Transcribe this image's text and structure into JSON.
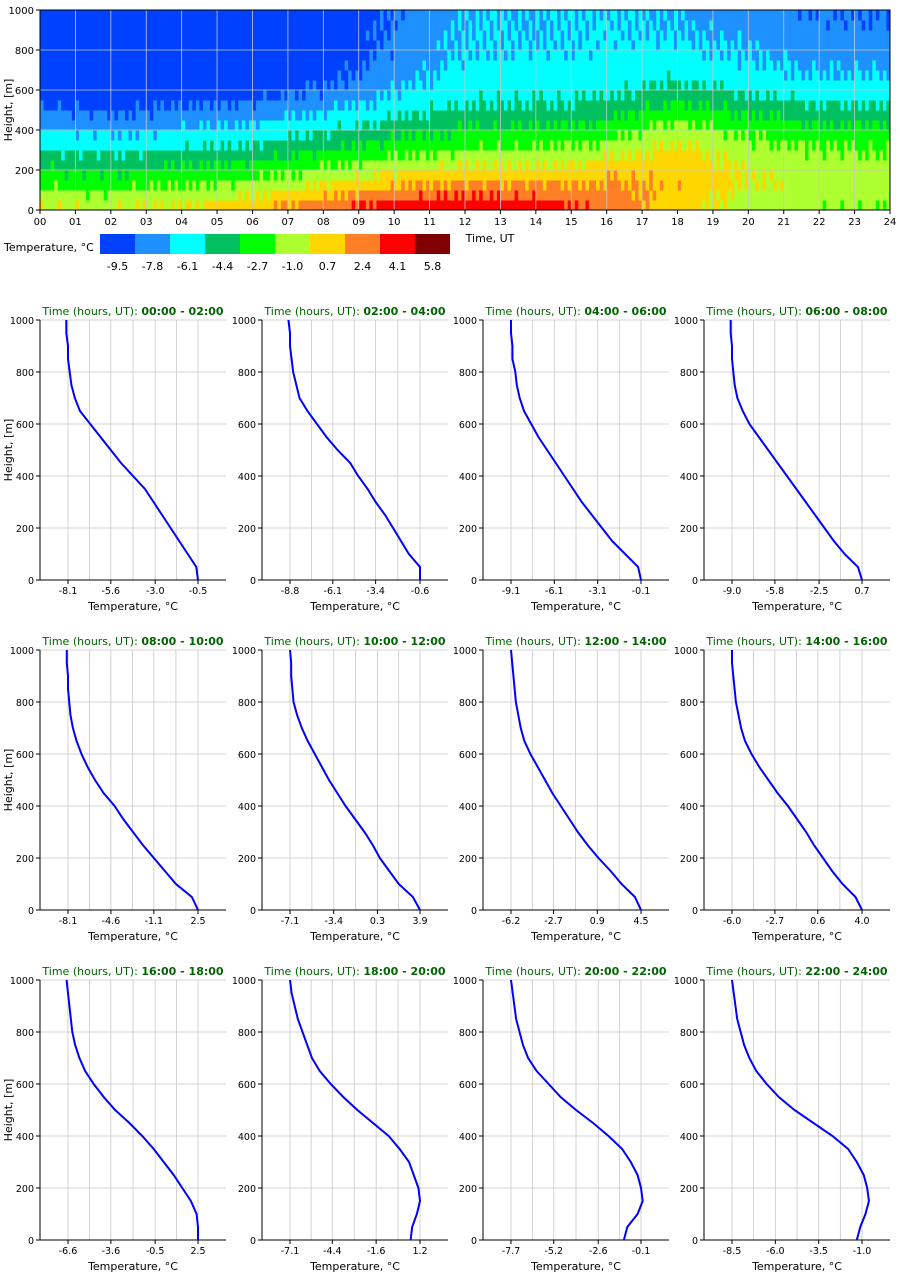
{
  "colors": {
    "palette": [
      "#0040ff",
      "#1e90ff",
      "#00ffff",
      "#00c060",
      "#00ff00",
      "#adff2f",
      "#ffd700",
      "#ff7f27",
      "#ff0000",
      "#800000"
    ],
    "profile_line": "#0000ff",
    "title_color": "#006400",
    "grid": "#c8c8c8"
  },
  "heatmap": {
    "ylabel": "Height, [m]",
    "xlabel": "Time, UT",
    "yticks": [
      "0",
      "200",
      "400",
      "600",
      "800",
      "1000"
    ],
    "xticks": [
      "00",
      "01",
      "02",
      "03",
      "04",
      "05",
      "06",
      "07",
      "08",
      "09",
      "10",
      "11",
      "12",
      "13",
      "14",
      "15",
      "16",
      "17",
      "18",
      "19",
      "20",
      "21",
      "22",
      "23",
      "24"
    ],
    "legend_title": "Temperature, °C",
    "legend_values": [
      "-9.5",
      "-7.8",
      "-6.1",
      "-4.4",
      "-2.7",
      "-1.0",
      "0.7",
      "2.4",
      "4.1",
      "5.8"
    ]
  },
  "profiles_common": {
    "ylabel": "Height, [m]",
    "xlabel": "Temperature, °C",
    "title_prefix": "Time (hours, UT): ",
    "yticks": [
      "0",
      "200",
      "400",
      "600",
      "800",
      "1000"
    ]
  },
  "chart_data": [
    {
      "type": "heatmap",
      "xlabel": "Time, UT",
      "ylabel": "Height, [m]",
      "x_range_hours": [
        0,
        24
      ],
      "y_range_m": [
        0,
        1000
      ],
      "colorbar_label": "Temperature, °C",
      "colorbar_values": [
        -9.5,
        -7.8,
        -6.1,
        -4.4,
        -2.7,
        -1.0,
        0.7,
        2.4,
        4.1,
        5.8
      ],
      "band_step_m": 50,
      "grid": true,
      "series": [
        {
          "time_h": 0.0,
          "band_temps": [
            -0.5,
            -1.3,
            -2.2,
            -3.1,
            -3.9,
            -4.8,
            -5.7,
            -6.5,
            -7.4,
            -8.1,
            -8.9,
            -9.6,
            -10.0,
            -10.0,
            -10.0,
            -10.0,
            -10.0,
            -10.0,
            -10.0,
            -10.0
          ]
        },
        {
          "time_h": 2.0,
          "band_temps": [
            -0.6,
            -1.5,
            -2.4,
            -3.3,
            -4.2,
            -5.0,
            -5.9,
            -6.7,
            -7.6,
            -8.4,
            -9.2,
            -9.9,
            -10.0,
            -10.0,
            -10.0,
            -10.0,
            -10.0,
            -10.0,
            -10.0,
            -10.0
          ]
        },
        {
          "time_h": 4.0,
          "band_temps": [
            -0.1,
            -1.1,
            -2.0,
            -2.9,
            -3.8,
            -4.7,
            -5.6,
            -6.4,
            -7.3,
            -8.1,
            -8.9,
            -9.6,
            -10.0,
            -10.0,
            -10.0,
            -10.0,
            -10.0,
            -10.0,
            -10.0,
            -10.0
          ]
        },
        {
          "time_h": 6.0,
          "band_temps": [
            0.7,
            -0.3,
            -1.3,
            -2.3,
            -3.3,
            -4.2,
            -5.1,
            -6.0,
            -6.8,
            -7.6,
            -8.4,
            -9.1,
            -9.7,
            -10.0,
            -10.0,
            -10.0,
            -10.0,
            -10.0,
            -10.0,
            -10.0
          ]
        },
        {
          "time_h": 8.0,
          "band_temps": [
            2.5,
            1.2,
            0.0,
            -1.1,
            -2.1,
            -3.1,
            -4.1,
            -5.0,
            -5.9,
            -6.7,
            -7.5,
            -8.2,
            -8.8,
            -9.3,
            -9.6,
            -9.8,
            -10.0,
            -10.0,
            -10.0,
            -10.0
          ]
        },
        {
          "time_h": 10.0,
          "band_temps": [
            3.9,
            2.6,
            1.3,
            0.1,
            -1.0,
            -2.0,
            -3.0,
            -3.9,
            -4.7,
            -5.5,
            -6.2,
            -6.8,
            -7.3,
            -7.7,
            -8.0,
            -8.2,
            -8.3,
            -8.4,
            -8.5,
            -8.6
          ]
        },
        {
          "time_h": 12.0,
          "band_temps": [
            4.5,
            3.2,
            2.0,
            0.8,
            -0.3,
            -1.3,
            -2.2,
            -3.0,
            -3.8,
            -4.5,
            -5.1,
            -5.6,
            -6.0,
            -6.3,
            -6.5,
            -6.7,
            -6.8,
            -6.9,
            -7.0,
            -7.0
          ]
        },
        {
          "time_h": 14.0,
          "band_temps": [
            4.0,
            2.9,
            1.8,
            0.7,
            -0.3,
            -1.3,
            -2.2,
            -3.0,
            -3.8,
            -4.5,
            -5.1,
            -5.6,
            -6.0,
            -6.3,
            -6.5,
            -6.7,
            -6.8,
            -6.9,
            -7.0,
            -7.0
          ]
        },
        {
          "time_h": 16.0,
          "band_temps": [
            2.5,
            2.3,
            1.8,
            1.2,
            0.4,
            -0.5,
            -1.4,
            -2.3,
            -3.2,
            -4.0,
            -4.7,
            -5.3,
            -5.8,
            -6.1,
            -6.3,
            -6.5,
            -6.6,
            -6.7,
            -6.8,
            -6.8
          ]
        },
        {
          "time_h": 18.0,
          "band_temps": [
            0.8,
            1.0,
            1.2,
            1.1,
            0.9,
            0.5,
            0.0,
            -0.7,
            -1.5,
            -2.4,
            -3.3,
            -4.2,
            -5.0,
            -5.6,
            -6.1,
            -6.4,
            -6.6,
            -6.8,
            -7.0,
            -7.2
          ]
        },
        {
          "time_h": 20.0,
          "band_temps": [
            -1.0,
            -0.6,
            -0.1,
            -0.2,
            -0.5,
            -0.9,
            -1.4,
            -2.0,
            -2.7,
            -3.5,
            -4.3,
            -5.1,
            -5.8,
            -6.3,
            -6.7,
            -7.0,
            -7.2,
            -7.4,
            -7.6,
            -7.8
          ]
        },
        {
          "time_h": 22.0,
          "band_temps": [
            -1.5,
            -1.2,
            -0.9,
            -1.0,
            -1.2,
            -1.6,
            -2.1,
            -2.7,
            -3.5,
            -4.3,
            -5.1,
            -5.8,
            -6.4,
            -6.9,
            -7.3,
            -7.6,
            -7.9,
            -8.1,
            -8.3,
            -8.5
          ]
        }
      ]
    },
    {
      "type": "line",
      "title": "00:00 - 02:00",
      "xlabel": "Temperature, °C",
      "ylabel": "Height, [m]",
      "xticks": [
        -8.1,
        -5.6,
        -3.0,
        -0.5
      ],
      "ylim": [
        0,
        1000
      ],
      "temps": [
        -0.5,
        -0.6,
        -1.1,
        -1.6,
        -2.1,
        -2.6,
        -3.1,
        -3.6,
        -4.3,
        -5.0,
        -5.6,
        -6.2,
        -6.8,
        -7.4,
        -7.7,
        -7.9,
        -8.0,
        -8.1,
        -8.1,
        -8.2,
        -8.2
      ],
      "heights": [
        0,
        50,
        100,
        150,
        200,
        250,
        300,
        350,
        400,
        450,
        500,
        550,
        600,
        650,
        700,
        750,
        800,
        850,
        900,
        950,
        1000
      ]
    },
    {
      "type": "line",
      "title": "02:00 - 04:00",
      "xlabel": "Temperature, °C",
      "ylabel": "Height, [m]",
      "xticks": [
        -8.8,
        -6.1,
        -3.4,
        -0.6
      ],
      "ylim": [
        0,
        1000
      ],
      "temps": [
        -0.6,
        -0.6,
        -1.3,
        -1.8,
        -2.3,
        -2.8,
        -3.4,
        -3.9,
        -4.5,
        -5.0,
        -5.8,
        -6.5,
        -7.1,
        -7.7,
        -8.2,
        -8.4,
        -8.6,
        -8.7,
        -8.8,
        -8.8,
        -8.9
      ],
      "heights": [
        0,
        50,
        100,
        150,
        200,
        250,
        300,
        350,
        400,
        450,
        500,
        550,
        600,
        650,
        700,
        750,
        800,
        850,
        900,
        950,
        1000
      ]
    },
    {
      "type": "line",
      "title": "04:00 - 06:00",
      "xlabel": "Temperature, °C",
      "ylabel": "Height, [m]",
      "xticks": [
        -9.1,
        -6.1,
        -3.1,
        -0.1
      ],
      "ylim": [
        0,
        1000
      ],
      "temps": [
        -0.1,
        -0.3,
        -1.2,
        -2.1,
        -2.8,
        -3.5,
        -4.2,
        -4.8,
        -5.4,
        -6.0,
        -6.6,
        -7.2,
        -7.7,
        -8.2,
        -8.5,
        -8.7,
        -8.8,
        -9.0,
        -9.0,
        -9.1,
        -9.1
      ],
      "heights": [
        0,
        50,
        100,
        150,
        200,
        250,
        300,
        350,
        400,
        450,
        500,
        550,
        600,
        650,
        700,
        750,
        800,
        850,
        900,
        950,
        1000
      ]
    },
    {
      "type": "line",
      "title": "06:00 - 08:00",
      "xlabel": "Temperature, °C",
      "ylabel": "Height, [m]",
      "xticks": [
        -9.0,
        -5.8,
        -2.5,
        0.7
      ],
      "ylim": [
        0,
        1000
      ],
      "temps": [
        0.7,
        0.4,
        -0.6,
        -1.4,
        -2.1,
        -2.8,
        -3.5,
        -4.2,
        -4.9,
        -5.6,
        -6.3,
        -7.0,
        -7.7,
        -8.2,
        -8.6,
        -8.8,
        -8.9,
        -9.0,
        -9.0,
        -9.1,
        -9.1
      ],
      "heights": [
        0,
        50,
        100,
        150,
        200,
        250,
        300,
        350,
        400,
        450,
        500,
        550,
        600,
        650,
        700,
        750,
        800,
        850,
        900,
        950,
        1000
      ]
    },
    {
      "type": "line",
      "title": "08:00 - 10:00",
      "xlabel": "Temperature, °C",
      "ylabel": "Height, [m]",
      "xticks": [
        -8.1,
        -4.6,
        -1.1,
        2.5
      ],
      "ylim": [
        0,
        1000
      ],
      "temps": [
        2.5,
        2.0,
        0.7,
        -0.2,
        -1.1,
        -2.0,
        -2.8,
        -3.6,
        -4.3,
        -5.2,
        -5.9,
        -6.5,
        -7.0,
        -7.4,
        -7.7,
        -7.9,
        -8.0,
        -8.1,
        -8.1,
        -8.2,
        -8.2
      ],
      "heights": [
        0,
        50,
        100,
        150,
        200,
        250,
        300,
        350,
        400,
        450,
        500,
        550,
        600,
        650,
        700,
        750,
        800,
        850,
        900,
        950,
        1000
      ]
    },
    {
      "type": "line",
      "title": "10:00 - 12:00",
      "xlabel": "Temperature, °C",
      "ylabel": "Height, [m]",
      "xticks": [
        -7.1,
        -3.4,
        0.3,
        3.9
      ],
      "ylim": [
        0,
        1000
      ],
      "temps": [
        3.9,
        3.3,
        2.1,
        1.3,
        0.5,
        -0.1,
        -0.8,
        -1.6,
        -2.4,
        -3.1,
        -3.8,
        -4.4,
        -5.0,
        -5.6,
        -6.1,
        -6.5,
        -6.8,
        -6.9,
        -7.0,
        -7.0,
        -7.1
      ],
      "heights": [
        0,
        50,
        100,
        150,
        200,
        250,
        300,
        350,
        400,
        450,
        500,
        550,
        600,
        650,
        700,
        750,
        800,
        850,
        900,
        950,
        1000
      ]
    },
    {
      "type": "line",
      "title": "12:00 - 14:00",
      "xlabel": "Temperature, °C",
      "ylabel": "Height, [m]",
      "xticks": [
        -6.2,
        -2.7,
        0.9,
        4.5
      ],
      "ylim": [
        0,
        1000
      ],
      "temps": [
        4.5,
        4.0,
        2.9,
        2.0,
        1.0,
        0.1,
        -0.7,
        -1.4,
        -2.1,
        -2.8,
        -3.4,
        -4.0,
        -4.6,
        -5.1,
        -5.4,
        -5.6,
        -5.8,
        -5.9,
        -6.0,
        -6.1,
        -6.2
      ],
      "heights": [
        0,
        50,
        100,
        150,
        200,
        250,
        300,
        350,
        400,
        450,
        500,
        550,
        600,
        650,
        700,
        750,
        800,
        850,
        900,
        950,
        1000
      ]
    },
    {
      "type": "line",
      "title": "14:00 - 16:00",
      "xlabel": "Temperature, °C",
      "ylabel": "Height, [m]",
      "xticks": [
        -6.0,
        -2.7,
        0.6,
        4.0
      ],
      "ylim": [
        0,
        1000
      ],
      "temps": [
        4.0,
        3.5,
        2.5,
        1.7,
        1.0,
        0.3,
        -0.3,
        -1.0,
        -1.7,
        -2.5,
        -3.2,
        -3.9,
        -4.5,
        -5.0,
        -5.3,
        -5.5,
        -5.7,
        -5.8,
        -5.9,
        -6.0,
        -6.0
      ],
      "heights": [
        0,
        50,
        100,
        150,
        200,
        250,
        300,
        350,
        400,
        450,
        500,
        550,
        600,
        650,
        700,
        750,
        800,
        850,
        900,
        950,
        1000
      ]
    },
    {
      "type": "line",
      "title": "16:00 - 18:00",
      "xlabel": "Temperature, °C",
      "ylabel": "Height, [m]",
      "xticks": [
        -6.6,
        -3.6,
        -0.5,
        2.5
      ],
      "ylim": [
        0,
        1000
      ],
      "temps": [
        2.5,
        2.5,
        2.4,
        2.0,
        1.4,
        0.8,
        0.1,
        -0.6,
        -1.4,
        -2.3,
        -3.3,
        -4.1,
        -4.8,
        -5.4,
        -5.8,
        -6.1,
        -6.3,
        -6.4,
        -6.5,
        -6.6,
        -6.7
      ],
      "heights": [
        0,
        50,
        100,
        150,
        200,
        250,
        300,
        350,
        400,
        450,
        500,
        550,
        600,
        650,
        700,
        750,
        800,
        850,
        900,
        950,
        1000
      ]
    },
    {
      "type": "line",
      "title": "18:00 - 20:00",
      "xlabel": "Temperature, °C",
      "ylabel": "Height, [m]",
      "xticks": [
        -7.1,
        -4.4,
        -1.6,
        1.2
      ],
      "ylim": [
        0,
        1000
      ],
      "temps": [
        0.6,
        0.7,
        1.0,
        1.2,
        1.1,
        0.8,
        0.5,
        -0.1,
        -0.8,
        -1.8,
        -2.8,
        -3.7,
        -4.5,
        -5.2,
        -5.7,
        -6.0,
        -6.3,
        -6.6,
        -6.8,
        -7.0,
        -7.1
      ],
      "heights": [
        0,
        50,
        100,
        150,
        200,
        250,
        300,
        350,
        400,
        450,
        500,
        550,
        600,
        650,
        700,
        750,
        800,
        850,
        900,
        950,
        1000
      ]
    },
    {
      "type": "line",
      "title": "20:00 - 22:00",
      "xlabel": "Temperature, °C",
      "ylabel": "Height, [m]",
      "xticks": [
        -7.7,
        -5.2,
        -2.6,
        -0.1
      ],
      "ylim": [
        0,
        1000
      ],
      "temps": [
        -1.1,
        -0.9,
        -0.3,
        0.0,
        -0.1,
        -0.3,
        -0.7,
        -1.2,
        -2.0,
        -2.9,
        -3.9,
        -4.8,
        -5.5,
        -6.2,
        -6.7,
        -7.0,
        -7.2,
        -7.4,
        -7.5,
        -7.6,
        -7.7
      ],
      "heights": [
        0,
        50,
        100,
        150,
        200,
        250,
        300,
        350,
        400,
        450,
        500,
        550,
        600,
        650,
        700,
        750,
        800,
        850,
        900,
        950,
        1000
      ]
    },
    {
      "type": "line",
      "title": "22:00 - 24:00",
      "xlabel": "Temperature, °C",
      "ylabel": "Height, [m]",
      "xticks": [
        -8.5,
        -6.0,
        -3.5,
        -1.0
      ],
      "ylim": [
        0,
        1000
      ],
      "temps": [
        -1.3,
        -1.1,
        -0.8,
        -0.6,
        -0.7,
        -0.9,
        -1.3,
        -1.8,
        -2.7,
        -3.8,
        -4.9,
        -5.8,
        -6.5,
        -7.1,
        -7.5,
        -7.8,
        -8.0,
        -8.2,
        -8.3,
        -8.4,
        -8.5
      ],
      "heights": [
        0,
        50,
        100,
        150,
        200,
        250,
        300,
        350,
        400,
        450,
        500,
        550,
        600,
        650,
        700,
        750,
        800,
        850,
        900,
        950,
        1000
      ]
    }
  ]
}
